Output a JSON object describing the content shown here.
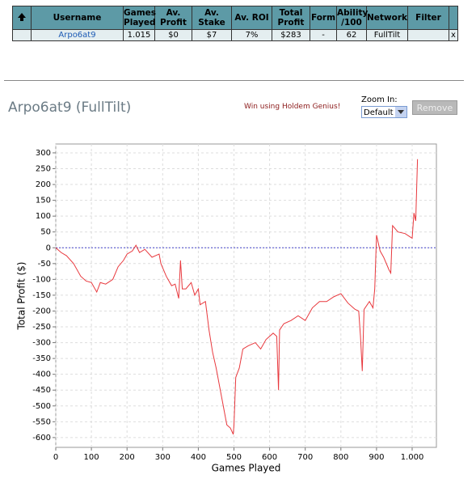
{
  "table": {
    "headers": [
      "Username",
      "Games Played",
      "Av. Profit",
      "Av. Stake",
      "Av. ROI",
      "Total Profit",
      "Form",
      "Ability /100",
      "Network",
      "Filter"
    ],
    "rows": [
      [
        "Arpo6at9",
        "1.015",
        "$0",
        "$7",
        "7%",
        "$283",
        "-",
        "62",
        "FullTilt",
        "x"
      ]
    ]
  },
  "header": {
    "title": "Arpo6at9 (FullTilt)",
    "promo": "Win using Holdem Genius!",
    "zoom_label": "Zoom In:",
    "zoom_option": "Default",
    "button": "Remove"
  },
  "chart_data": {
    "type": "line",
    "x_label": "Games Played",
    "y_label": "Total Profit ($)",
    "color": "#e8383d",
    "grid": true,
    "zero_line": true,
    "x": [
      0,
      15,
      30,
      50,
      70,
      85,
      100,
      115,
      125,
      140,
      160,
      175,
      190,
      200,
      215,
      225,
      235,
      250,
      270,
      290,
      295,
      310,
      325,
      335,
      345,
      350,
      355,
      365,
      380,
      390,
      400,
      405,
      420,
      430,
      440,
      450,
      460,
      470,
      480,
      490,
      498,
      500,
      505,
      515,
      525,
      540,
      560,
      575,
      590,
      610,
      620,
      625,
      628,
      640,
      660,
      680,
      700,
      720,
      740,
      760,
      780,
      800,
      820,
      840,
      850,
      855,
      860,
      865,
      880,
      890,
      895,
      900,
      910,
      920,
      935,
      940,
      945,
      960,
      980,
      1000,
      1005,
      1010,
      1015
    ],
    "values": [
      0,
      -15,
      -25,
      -50,
      -90,
      -105,
      -110,
      -140,
      -110,
      -115,
      -100,
      -60,
      -40,
      -20,
      -10,
      8,
      -15,
      -5,
      -30,
      -20,
      -50,
      -90,
      -120,
      -115,
      -160,
      -40,
      -130,
      -130,
      -110,
      -150,
      -130,
      -180,
      -170,
      -260,
      -330,
      -380,
      -440,
      -500,
      -560,
      -570,
      -590,
      -560,
      -410,
      -380,
      -320,
      -310,
      -300,
      -320,
      -290,
      -270,
      -280,
      -450,
      -260,
      -240,
      -230,
      -215,
      -230,
      -190,
      -170,
      -170,
      -155,
      -145,
      -175,
      -195,
      -200,
      -280,
      -390,
      -195,
      -170,
      -190,
      -130,
      40,
      -10,
      -30,
      -70,
      -80,
      70,
      50,
      45,
      30,
      110,
      85,
      280
    ],
    "xlim": [
      0,
      1068
    ],
    "ylim": [
      -631,
      328
    ],
    "xticks": [
      0,
      100,
      200,
      300,
      400,
      500,
      600,
      700,
      800,
      900,
      {
        "value": 1000,
        "label": "1.000"
      }
    ],
    "yticks": [
      -600,
      -550,
      -500,
      -450,
      -400,
      -350,
      -300,
      -250,
      -200,
      -150,
      -100,
      -50,
      0,
      50,
      100,
      150,
      200,
      250,
      300
    ]
  }
}
